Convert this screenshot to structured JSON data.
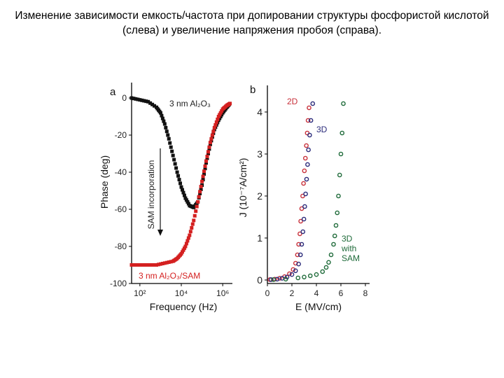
{
  "slide": {
    "title": "Изменение зависимости емкость/частота при допировании структуры фосфористой кислотой (слева) и увеличение напряжения пробоя (справа)."
  },
  "chart_data": [
    {
      "panel": "a",
      "type": "scatter",
      "xlabel": "Frequency (Hz)",
      "ylabel": "Phase (deg)",
      "xscale": "log",
      "xlim_log10": [
        1.6,
        6.4
      ],
      "ylim": [
        -100,
        0
      ],
      "x_tick_labels": [
        "10²",
        "10⁴",
        "10⁶"
      ],
      "y_tick_labels": [
        "0",
        "-20",
        "-40",
        "-60",
        "-80",
        "-100"
      ],
      "annotation": "SAM incorporation",
      "series": [
        {
          "name": "3 nm Al₂O₃",
          "color": "#111111",
          "log10_x": [
            1.6,
            2.0,
            2.4,
            2.8,
            3.0,
            3.2,
            3.4,
            3.6,
            3.8,
            4.0,
            4.2,
            4.4,
            4.6,
            4.8,
            5.0,
            5.2,
            5.4,
            5.6,
            5.8,
            6.0,
            6.2,
            6.35
          ],
          "y": [
            0,
            -1,
            -2,
            -5,
            -8,
            -14,
            -22,
            -31,
            -40,
            -48,
            -54,
            -58,
            -59,
            -56,
            -47,
            -35,
            -25,
            -17,
            -12,
            -8,
            -5,
            -3
          ]
        },
        {
          "name": "3 nm Al₂O₃/SAM",
          "color": "#d42020",
          "log10_x": [
            1.6,
            2.0,
            2.4,
            2.8,
            3.2,
            3.6,
            3.8,
            4.0,
            4.2,
            4.4,
            4.6,
            4.8,
            5.0,
            5.2,
            5.4,
            5.6,
            5.8,
            6.0,
            6.2,
            6.35
          ],
          "y": [
            -90,
            -90,
            -90,
            -90,
            -89,
            -88,
            -86.5,
            -84,
            -80,
            -74,
            -66,
            -56,
            -45,
            -34,
            -24,
            -16,
            -10,
            -6,
            -4,
            -3
          ]
        }
      ]
    },
    {
      "panel": "b",
      "type": "scatter",
      "xlabel": "E (MV/cm)",
      "ylabel": "J (10⁻⁷A/cm²)",
      "xlim": [
        0,
        8
      ],
      "ylim": [
        0,
        4.5
      ],
      "x_ticks": [
        0,
        2,
        4,
        6,
        8
      ],
      "y_ticks": [
        0,
        1,
        2,
        3,
        4
      ],
      "series": [
        {
          "name": "2D",
          "color": "#c8303a",
          "x": [
            0.2,
            0.6,
            1.0,
            1.4,
            1.8,
            2.1,
            2.3,
            2.45,
            2.55,
            2.65,
            2.72,
            2.8,
            2.88,
            2.95,
            3.02,
            3.1,
            3.18,
            3.25,
            3.32,
            3.4
          ],
          "y": [
            0.01,
            0.02,
            0.04,
            0.08,
            0.15,
            0.25,
            0.4,
            0.6,
            0.85,
            1.1,
            1.4,
            1.7,
            2.0,
            2.3,
            2.6,
            2.9,
            3.2,
            3.5,
            3.8,
            4.1
          ]
        },
        {
          "name": "3D",
          "color": "#2a2a7a",
          "x": [
            0.3,
            0.8,
            1.2,
            1.6,
            2.0,
            2.3,
            2.55,
            2.7,
            2.8,
            2.9,
            2.98,
            3.05,
            3.12,
            3.2,
            3.28,
            3.35,
            3.45,
            3.55,
            3.7
          ],
          "y": [
            0.01,
            0.02,
            0.04,
            0.07,
            0.13,
            0.22,
            0.38,
            0.6,
            0.85,
            1.15,
            1.45,
            1.75,
            2.05,
            2.4,
            2.75,
            3.1,
            3.45,
            3.8,
            4.2
          ]
        },
        {
          "name": "3D with SAM",
          "color": "#1f6b3a",
          "x": [
            0.5,
            1.5,
            2.5,
            3.0,
            3.5,
            4.0,
            4.5,
            4.8,
            5.0,
            5.2,
            5.4,
            5.5,
            5.6,
            5.7,
            5.8,
            5.9,
            6.0,
            6.1,
            6.2
          ],
          "y": [
            0.01,
            0.02,
            0.05,
            0.07,
            0.1,
            0.13,
            0.2,
            0.3,
            0.42,
            0.6,
            0.85,
            1.05,
            1.3,
            1.6,
            2.0,
            2.5,
            3.0,
            3.5,
            4.2
          ]
        }
      ]
    }
  ]
}
